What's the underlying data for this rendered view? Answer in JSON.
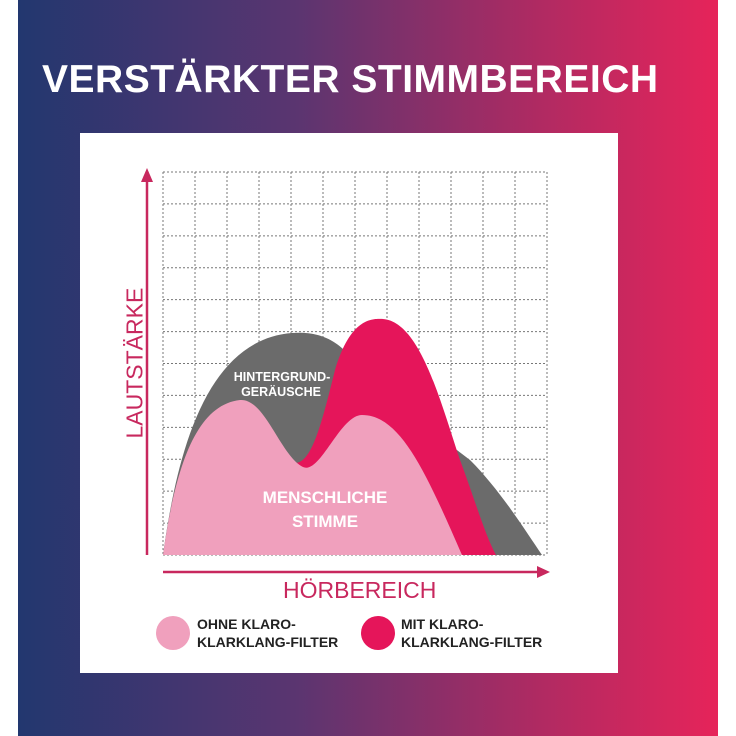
{
  "title": "VERSTÄRKTER STIMMBEREICH",
  "diagram": {
    "y_axis_label": "LAUTSTÄRKE",
    "x_axis_label": "HÖRBEREICH",
    "area_labels": {
      "background_line1": "HINTERGRUND-",
      "background_line2": "GERÄUSCHE",
      "voice_line1": "MENSCHLICHE",
      "voice_line2": "STIMME"
    },
    "grid": true,
    "legend": [
      {
        "line1": "OHNE KLARO-",
        "line2": "KLARKLANG-FILTER",
        "color": "#f0a0bd"
      },
      {
        "line1": "MIT KLARO-",
        "line2": "KLARKLANG-FILTER",
        "color": "#e5155a"
      }
    ],
    "colors": {
      "background_noise": "#6b6b6b",
      "voice_without_filter": "#f0a0bd",
      "voice_with_filter": "#e5155a",
      "axis": "#c8285e"
    }
  },
  "colors": {
    "gradient_left": "#22376f",
    "gradient_right": "#e6245a"
  }
}
